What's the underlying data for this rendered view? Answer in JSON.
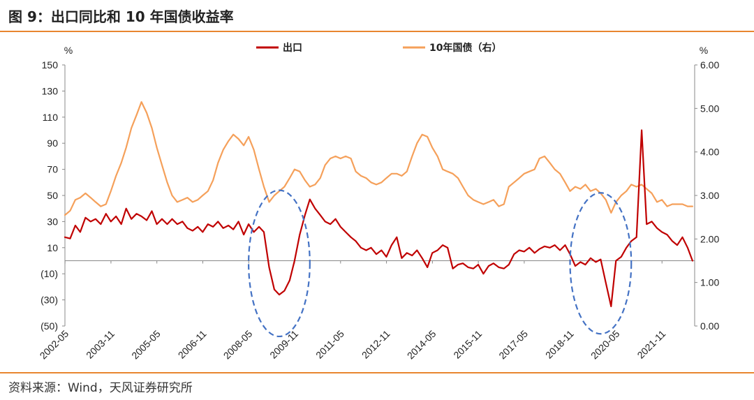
{
  "title": "图 9：出口同比和 10 年国债收益率",
  "source": "资料来源：Wind，天风证券研究所",
  "chart_data": {
    "type": "line",
    "left_unit": "%",
    "right_unit": "%",
    "y_left": {
      "min": -50,
      "max": 150,
      "ticks": [
        150,
        130,
        110,
        90,
        70,
        50,
        30,
        10,
        -10,
        -30,
        -50
      ],
      "tick_labels": [
        "150",
        "130",
        "110",
        "90",
        "70",
        "50",
        "30",
        "10",
        "(10)",
        "(30)",
        "(50)"
      ]
    },
    "y_right": {
      "min": 0,
      "max": 6,
      "ticks": [
        6,
        5,
        4,
        3,
        2,
        1,
        0
      ],
      "tick_labels": [
        "6.00",
        "5.00",
        "4.00",
        "3.00",
        "2.00",
        "1.00",
        "0.00"
      ]
    },
    "x_tick_labels": [
      "2002-05",
      "2003-11",
      "2005-05",
      "2006-11",
      "2008-05",
      "2009-11",
      "2011-05",
      "2012-11",
      "2014-05",
      "2015-11",
      "2017-05",
      "2018-11",
      "2020-05",
      "2021-11"
    ],
    "legend": {
      "placement": "top-center"
    },
    "series": [
      {
        "name": "出口",
        "axis": "left",
        "color": "#c00000",
        "points": [
          [
            2002.33,
            18
          ],
          [
            2002.5,
            17
          ],
          [
            2002.67,
            27
          ],
          [
            2002.83,
            22
          ],
          [
            2003.0,
            33
          ],
          [
            2003.17,
            30
          ],
          [
            2003.33,
            32
          ],
          [
            2003.5,
            28
          ],
          [
            2003.67,
            36
          ],
          [
            2003.83,
            30
          ],
          [
            2004.0,
            34
          ],
          [
            2004.17,
            28
          ],
          [
            2004.33,
            40
          ],
          [
            2004.5,
            32
          ],
          [
            2004.67,
            36
          ],
          [
            2004.83,
            34
          ],
          [
            2005.0,
            31
          ],
          [
            2005.17,
            38
          ],
          [
            2005.33,
            28
          ],
          [
            2005.5,
            32
          ],
          [
            2005.67,
            28
          ],
          [
            2005.83,
            32
          ],
          [
            2006.0,
            28
          ],
          [
            2006.17,
            30
          ],
          [
            2006.33,
            25
          ],
          [
            2006.5,
            23
          ],
          [
            2006.67,
            26
          ],
          [
            2006.83,
            22
          ],
          [
            2007.0,
            28
          ],
          [
            2007.17,
            26
          ],
          [
            2007.33,
            30
          ],
          [
            2007.5,
            25
          ],
          [
            2007.67,
            27
          ],
          [
            2007.83,
            24
          ],
          [
            2008.0,
            30
          ],
          [
            2008.17,
            20
          ],
          [
            2008.33,
            28
          ],
          [
            2008.5,
            22
          ],
          [
            2008.67,
            26
          ],
          [
            2008.83,
            22
          ],
          [
            2009.0,
            -5
          ],
          [
            2009.17,
            -22
          ],
          [
            2009.33,
            -26
          ],
          [
            2009.5,
            -23
          ],
          [
            2009.67,
            -15
          ],
          [
            2009.83,
            0
          ],
          [
            2010.0,
            20
          ],
          [
            2010.17,
            35
          ],
          [
            2010.33,
            47
          ],
          [
            2010.5,
            40
          ],
          [
            2010.67,
            35
          ],
          [
            2010.83,
            30
          ],
          [
            2011.0,
            28
          ],
          [
            2011.17,
            32
          ],
          [
            2011.33,
            26
          ],
          [
            2011.5,
            22
          ],
          [
            2011.67,
            18
          ],
          [
            2011.83,
            15
          ],
          [
            2012.0,
            10
          ],
          [
            2012.17,
            8
          ],
          [
            2012.33,
            10
          ],
          [
            2012.5,
            5
          ],
          [
            2012.67,
            8
          ],
          [
            2012.83,
            3
          ],
          [
            2013.0,
            12
          ],
          [
            2013.17,
            18
          ],
          [
            2013.33,
            2
          ],
          [
            2013.5,
            6
          ],
          [
            2013.67,
            4
          ],
          [
            2013.83,
            8
          ],
          [
            2014.0,
            2
          ],
          [
            2014.17,
            -5
          ],
          [
            2014.33,
            6
          ],
          [
            2014.5,
            8
          ],
          [
            2014.67,
            12
          ],
          [
            2014.83,
            10
          ],
          [
            2015.0,
            -6
          ],
          [
            2015.17,
            -3
          ],
          [
            2015.33,
            -2
          ],
          [
            2015.5,
            -5
          ],
          [
            2015.67,
            -6
          ],
          [
            2015.83,
            -3
          ],
          [
            2016.0,
            -10
          ],
          [
            2016.17,
            -4
          ],
          [
            2016.33,
            -2
          ],
          [
            2016.5,
            -5
          ],
          [
            2016.67,
            -6
          ],
          [
            2016.83,
            -3
          ],
          [
            2017.0,
            5
          ],
          [
            2017.17,
            8
          ],
          [
            2017.33,
            7
          ],
          [
            2017.5,
            10
          ],
          [
            2017.67,
            6
          ],
          [
            2017.83,
            9
          ],
          [
            2018.0,
            11
          ],
          [
            2018.17,
            10
          ],
          [
            2018.33,
            12
          ],
          [
            2018.5,
            8
          ],
          [
            2018.67,
            12
          ],
          [
            2018.83,
            5
          ],
          [
            2019.0,
            -4
          ],
          [
            2019.17,
            -1
          ],
          [
            2019.33,
            -3
          ],
          [
            2019.5,
            2
          ],
          [
            2019.67,
            -1
          ],
          [
            2019.83,
            1
          ],
          [
            2020.0,
            -17
          ],
          [
            2020.17,
            -35
          ],
          [
            2020.33,
            0
          ],
          [
            2020.5,
            3
          ],
          [
            2020.67,
            10
          ],
          [
            2020.83,
            15
          ],
          [
            2021.0,
            18
          ],
          [
            2021.17,
            100
          ],
          [
            2021.33,
            28
          ],
          [
            2021.5,
            30
          ],
          [
            2021.67,
            25
          ],
          [
            2021.83,
            22
          ],
          [
            2022.0,
            20
          ],
          [
            2022.17,
            15
          ],
          [
            2022.33,
            12
          ],
          [
            2022.5,
            18
          ],
          [
            2022.67,
            10
          ],
          [
            2022.83,
            0
          ]
        ]
      },
      {
        "name": "10年国债（右）",
        "axis": "right",
        "color": "#f5a05a",
        "points": [
          [
            2002.33,
            2.55
          ],
          [
            2002.5,
            2.65
          ],
          [
            2002.67,
            2.9
          ],
          [
            2002.83,
            2.95
          ],
          [
            2003.0,
            3.05
          ],
          [
            2003.17,
            2.95
          ],
          [
            2003.33,
            2.85
          ],
          [
            2003.5,
            2.75
          ],
          [
            2003.67,
            2.8
          ],
          [
            2003.83,
            3.1
          ],
          [
            2004.0,
            3.45
          ],
          [
            2004.17,
            3.75
          ],
          [
            2004.33,
            4.1
          ],
          [
            2004.5,
            4.55
          ],
          [
            2004.67,
            4.85
          ],
          [
            2004.83,
            5.15
          ],
          [
            2005.0,
            4.9
          ],
          [
            2005.17,
            4.55
          ],
          [
            2005.33,
            4.1
          ],
          [
            2005.5,
            3.7
          ],
          [
            2005.67,
            3.3
          ],
          [
            2005.83,
            3.0
          ],
          [
            2006.0,
            2.85
          ],
          [
            2006.17,
            2.9
          ],
          [
            2006.33,
            2.95
          ],
          [
            2006.5,
            2.85
          ],
          [
            2006.67,
            2.9
          ],
          [
            2006.83,
            3.0
          ],
          [
            2007.0,
            3.1
          ],
          [
            2007.17,
            3.35
          ],
          [
            2007.33,
            3.75
          ],
          [
            2007.5,
            4.05
          ],
          [
            2007.67,
            4.25
          ],
          [
            2007.83,
            4.4
          ],
          [
            2008.0,
            4.3
          ],
          [
            2008.17,
            4.15
          ],
          [
            2008.33,
            4.35
          ],
          [
            2008.5,
            4.05
          ],
          [
            2008.67,
            3.6
          ],
          [
            2008.83,
            3.2
          ],
          [
            2009.0,
            2.85
          ],
          [
            2009.17,
            3.0
          ],
          [
            2009.33,
            3.1
          ],
          [
            2009.5,
            3.2
          ],
          [
            2009.67,
            3.4
          ],
          [
            2009.83,
            3.6
          ],
          [
            2010.0,
            3.55
          ],
          [
            2010.17,
            3.35
          ],
          [
            2010.33,
            3.2
          ],
          [
            2010.5,
            3.25
          ],
          [
            2010.67,
            3.4
          ],
          [
            2010.83,
            3.7
          ],
          [
            2011.0,
            3.85
          ],
          [
            2011.17,
            3.9
          ],
          [
            2011.33,
            3.85
          ],
          [
            2011.5,
            3.9
          ],
          [
            2011.67,
            3.85
          ],
          [
            2011.83,
            3.55
          ],
          [
            2012.0,
            3.45
          ],
          [
            2012.17,
            3.4
          ],
          [
            2012.33,
            3.3
          ],
          [
            2012.5,
            3.25
          ],
          [
            2012.67,
            3.3
          ],
          [
            2012.83,
            3.4
          ],
          [
            2013.0,
            3.5
          ],
          [
            2013.17,
            3.5
          ],
          [
            2013.33,
            3.45
          ],
          [
            2013.5,
            3.55
          ],
          [
            2013.67,
            3.9
          ],
          [
            2013.83,
            4.2
          ],
          [
            2014.0,
            4.4
          ],
          [
            2014.17,
            4.35
          ],
          [
            2014.33,
            4.1
          ],
          [
            2014.5,
            3.9
          ],
          [
            2014.67,
            3.6
          ],
          [
            2014.83,
            3.55
          ],
          [
            2015.0,
            3.5
          ],
          [
            2015.17,
            3.4
          ],
          [
            2015.33,
            3.2
          ],
          [
            2015.5,
            3.0
          ],
          [
            2015.67,
            2.9
          ],
          [
            2015.83,
            2.85
          ],
          [
            2016.0,
            2.8
          ],
          [
            2016.17,
            2.85
          ],
          [
            2016.33,
            2.9
          ],
          [
            2016.5,
            2.75
          ],
          [
            2016.67,
            2.8
          ],
          [
            2016.83,
            3.2
          ],
          [
            2017.0,
            3.3
          ],
          [
            2017.17,
            3.4
          ],
          [
            2017.33,
            3.5
          ],
          [
            2017.5,
            3.55
          ],
          [
            2017.67,
            3.6
          ],
          [
            2017.83,
            3.85
          ],
          [
            2018.0,
            3.9
          ],
          [
            2018.17,
            3.75
          ],
          [
            2018.33,
            3.6
          ],
          [
            2018.5,
            3.5
          ],
          [
            2018.67,
            3.3
          ],
          [
            2018.83,
            3.1
          ],
          [
            2019.0,
            3.2
          ],
          [
            2019.17,
            3.15
          ],
          [
            2019.33,
            3.25
          ],
          [
            2019.5,
            3.1
          ],
          [
            2019.67,
            3.15
          ],
          [
            2019.83,
            3.05
          ],
          [
            2020.0,
            2.9
          ],
          [
            2020.17,
            2.6
          ],
          [
            2020.33,
            2.85
          ],
          [
            2020.5,
            3.0
          ],
          [
            2020.67,
            3.1
          ],
          [
            2020.83,
            3.25
          ],
          [
            2021.0,
            3.2
          ],
          [
            2021.17,
            3.25
          ],
          [
            2021.33,
            3.15
          ],
          [
            2021.5,
            3.05
          ],
          [
            2021.67,
            2.85
          ],
          [
            2021.83,
            2.9
          ],
          [
            2022.0,
            2.75
          ],
          [
            2022.17,
            2.8
          ],
          [
            2022.33,
            2.8
          ],
          [
            2022.5,
            2.8
          ],
          [
            2022.67,
            2.75
          ],
          [
            2022.83,
            2.75
          ]
        ]
      }
    ],
    "annotations": [
      {
        "type": "dashed-ellipse",
        "color": "#4472c4",
        "center": [
          2009.33,
          -2
        ],
        "radius_years": 1.0,
        "radius_units": 56
      },
      {
        "type": "dashed-ellipse",
        "color": "#4472c4",
        "center": [
          2019.83,
          -2
        ],
        "radius_years": 1.0,
        "radius_units": 54
      }
    ]
  }
}
